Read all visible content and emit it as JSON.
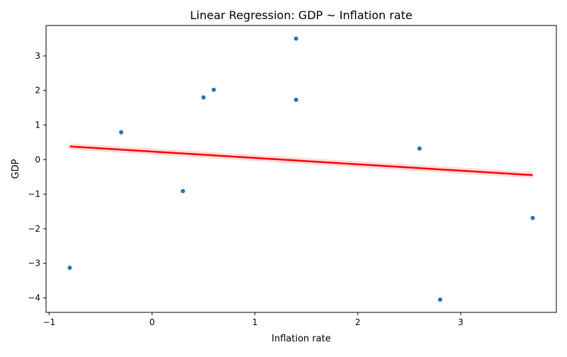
{
  "chart_data": {
    "type": "scatter",
    "title": "Linear Regression: GDP ~ Inflation rate",
    "xlabel": "Inflation rate",
    "ylabel": "GDP",
    "xlim": [
      -1.03,
      3.93
    ],
    "ylim": [
      -4.42,
      3.88
    ],
    "xticks": [
      -1,
      0,
      1,
      2,
      3
    ],
    "yticks": [
      -4,
      -3,
      -2,
      -1,
      0,
      1,
      2,
      3
    ],
    "grid": false,
    "points": [
      {
        "x": -0.8,
        "y": -3.13
      },
      {
        "x": -0.3,
        "y": 0.79
      },
      {
        "x": 0.3,
        "y": -0.91
      },
      {
        "x": 0.5,
        "y": 1.8
      },
      {
        "x": 0.6,
        "y": 2.02
      },
      {
        "x": 1.4,
        "y": 3.5
      },
      {
        "x": 1.4,
        "y": 1.73
      },
      {
        "x": 2.6,
        "y": 0.32
      },
      {
        "x": 2.8,
        "y": -4.05
      },
      {
        "x": 3.7,
        "y": -1.69
      }
    ],
    "regression": {
      "x": [
        -0.8,
        3.7
      ],
      "y": [
        0.38,
        -0.45
      ],
      "ci_halfwidth": 0.09
    },
    "colors": {
      "points": "#1f77b4",
      "line": "#ff0000",
      "band": "#ff9999"
    }
  }
}
